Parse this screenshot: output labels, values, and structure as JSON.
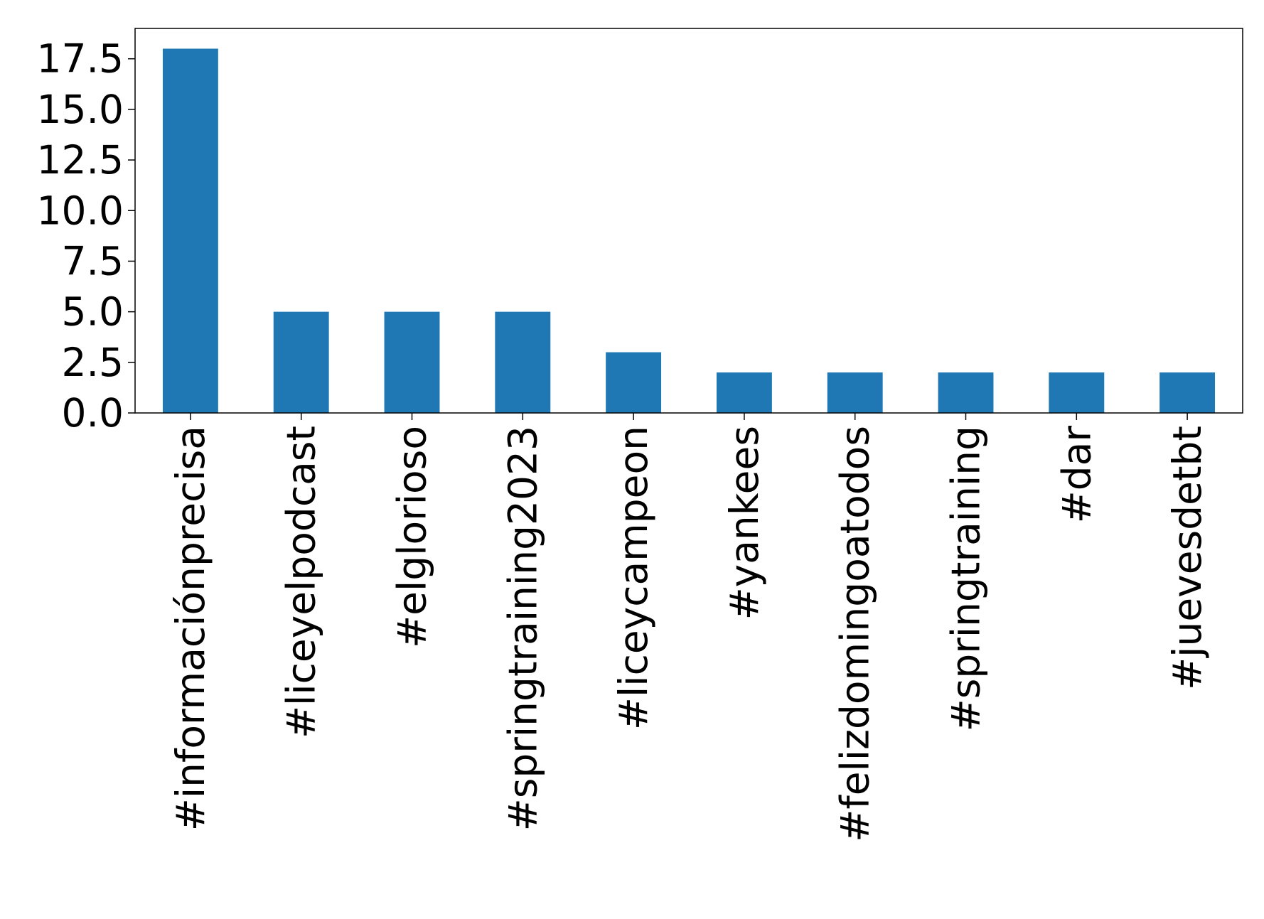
{
  "chart_data": {
    "type": "bar",
    "categories": [
      "#informaciónprecisa",
      "#liceyelpodcast",
      "#elglorioso",
      "#springtraining2023",
      "#liceycampeon",
      "#yankees",
      "#felizdomingoatodos",
      "#springtraining",
      "#dar",
      "#juevesdetbt"
    ],
    "values": [
      18,
      5,
      5,
      5,
      3,
      2,
      2,
      2,
      2,
      2
    ],
    "color": "#1f77b4",
    "ylim": [
      0,
      19
    ],
    "yticks": [
      {
        "value": 0,
        "label": "0.0"
      },
      2.5,
      {
        "value": 5,
        "label": "5.0"
      },
      7.5,
      {
        "value": 10,
        "label": "10.0"
      },
      12.5,
      {
        "value": 15,
        "label": "15.0"
      },
      17.5
    ]
  }
}
